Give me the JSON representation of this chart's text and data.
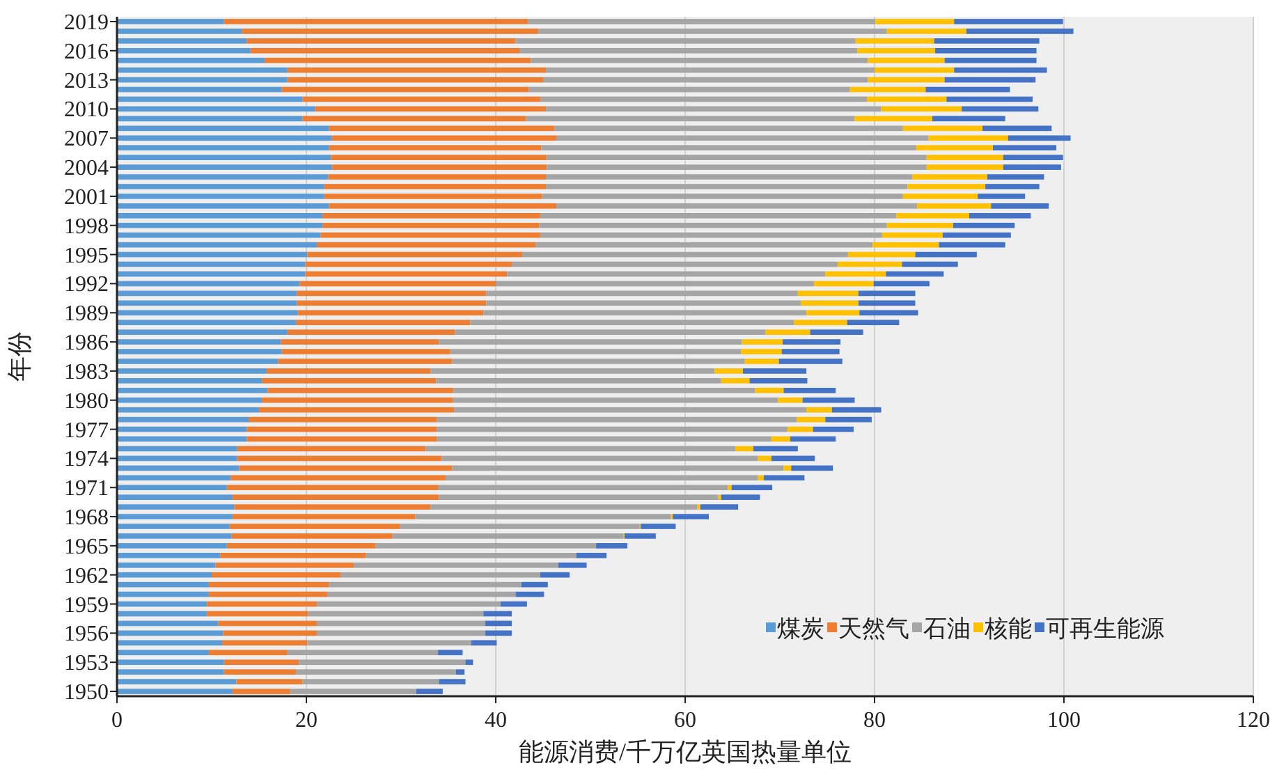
{
  "chart_data": {
    "type": "bar",
    "orientation": "horizontal",
    "stacked": true,
    "xlabel": "能源消费/千万亿英国热量单位",
    "ylabel": "年份",
    "categories": [
      "2019",
      null,
      null,
      "2016",
      null,
      null,
      "2013",
      null,
      null,
      "2010",
      null,
      null,
      "2007",
      null,
      null,
      "2004",
      null,
      null,
      "2001",
      null,
      null,
      "1998",
      null,
      null,
      "1995",
      null,
      null,
      "1992",
      null,
      null,
      "1989",
      null,
      null,
      "1986",
      null,
      null,
      "1983",
      null,
      null,
      "1980",
      null,
      null,
      "1977",
      null,
      null,
      "1974",
      null,
      null,
      "1971",
      null,
      null,
      "1968",
      null,
      null,
      "1965",
      null,
      null,
      "1962",
      null,
      null,
      "1959",
      null,
      null,
      "1956",
      null,
      null,
      "1953",
      null,
      null,
      "1950"
    ],
    "series": [
      {
        "name": "煤炭",
        "color": "#5b9bd5",
        "values": [
          11.3,
          13.2,
          13.7,
          14.1,
          15.6,
          18.0,
          18.0,
          17.4,
          19.6,
          20.9,
          19.6,
          22.4,
          22.7,
          22.4,
          22.6,
          22.7,
          22.3,
          21.9,
          21.9,
          22.4,
          21.7,
          21.7,
          21.5,
          21.1,
          20.1,
          19.9,
          19.9,
          19.3,
          19.0,
          19.0,
          19.1,
          18.9,
          18.0,
          17.3,
          17.4,
          17.0,
          15.8,
          15.3,
          15.9,
          15.3,
          15.0,
          13.9,
          13.7,
          13.7,
          12.7,
          12.7,
          12.9,
          12.0,
          11.6,
          12.2,
          12.4,
          12.2,
          11.9,
          12.1,
          11.6,
          10.9,
          10.4,
          10.0,
          9.7,
          9.7,
          9.5,
          9.5,
          10.7,
          11.2,
          11.1,
          9.7,
          11.3,
          11.3,
          12.6,
          12.2
        ]
      },
      {
        "name": "天然气",
        "color": "#ed7d31",
        "values": [
          32.1,
          31.3,
          28.4,
          28.4,
          28.1,
          27.3,
          27.0,
          26.1,
          25.1,
          24.4,
          23.6,
          23.8,
          23.7,
          22.4,
          22.8,
          22.7,
          23.0,
          23.4,
          23.0,
          24.0,
          23.0,
          22.9,
          23.2,
          23.1,
          22.7,
          21.8,
          21.3,
          20.7,
          20.0,
          20.0,
          19.6,
          18.4,
          17.7,
          16.7,
          17.8,
          18.4,
          17.3,
          18.4,
          19.6,
          20.2,
          20.6,
          19.9,
          20.1,
          20.1,
          19.9,
          21.6,
          22.5,
          22.7,
          22.3,
          21.8,
          20.7,
          19.3,
          18.0,
          17.0,
          15.7,
          15.4,
          14.6,
          13.6,
          12.7,
          12.5,
          11.6,
          10.7,
          10.4,
          9.9,
          9.0,
          8.3,
          7.9,
          7.6,
          7.0,
          6.1
        ]
      },
      {
        "name": "石油",
        "color": "#a5a5a5",
        "values": [
          36.7,
          36.8,
          35.9,
          35.7,
          35.6,
          34.7,
          34.3,
          33.9,
          34.5,
          35.4,
          34.7,
          36.8,
          39.3,
          39.6,
          40.1,
          40.1,
          38.7,
          38.2,
          38.1,
          38.1,
          37.6,
          36.7,
          36.1,
          35.6,
          34.4,
          34.4,
          33.6,
          33.6,
          32.9,
          33.2,
          34.1,
          34.2,
          32.8,
          32.0,
          30.7,
          30.9,
          30.0,
          30.1,
          31.9,
          34.3,
          37.2,
          38.0,
          37.0,
          35.3,
          32.7,
          33.4,
          35.0,
          33.0,
          30.6,
          29.5,
          28.2,
          27.0,
          25.3,
          24.4,
          23.3,
          22.2,
          21.6,
          21.1,
          20.3,
          19.9,
          19.4,
          18.5,
          17.8,
          17.8,
          17.3,
          15.9,
          17.6,
          16.9,
          14.4,
          13.3
        ]
      },
      {
        "name": "核能",
        "color": "#ffc000",
        "values": [
          8.3,
          8.4,
          8.3,
          8.2,
          8.1,
          8.4,
          8.1,
          8.0,
          8.4,
          8.5,
          8.2,
          8.4,
          8.4,
          8.1,
          8.1,
          8.1,
          7.9,
          8.2,
          7.9,
          7.8,
          7.7,
          7.0,
          6.4,
          7.0,
          7.1,
          6.8,
          6.4,
          6.3,
          6.4,
          6.1,
          5.6,
          5.6,
          4.7,
          4.3,
          4.3,
          3.6,
          3.0,
          3.0,
          3.0,
          2.6,
          2.7,
          3.0,
          2.7,
          2.0,
          1.9,
          1.4,
          0.8,
          0.6,
          0.4,
          0.3,
          0.3,
          0.2,
          0.1,
          0.1,
          0,
          0,
          0,
          0,
          0,
          0,
          0,
          0,
          0,
          0,
          0,
          0,
          0,
          0,
          0,
          0
        ]
      },
      {
        "name": "可再生能源",
        "color": "#4472c4",
        "values": [
          11.5,
          11.3,
          11.1,
          10.7,
          9.7,
          9.8,
          9.6,
          8.9,
          9.1,
          8.1,
          7.7,
          7.3,
          6.6,
          6.7,
          6.3,
          6.1,
          6.0,
          5.7,
          5.0,
          6.1,
          6.5,
          6.5,
          7.2,
          7.0,
          6.5,
          5.9,
          6.1,
          5.9,
          6.0,
          6.0,
          6.2,
          5.5,
          5.6,
          6.1,
          6.1,
          6.7,
          6.7,
          6.1,
          5.5,
          5.5,
          5.2,
          4.9,
          4.3,
          4.8,
          4.7,
          4.6,
          4.4,
          4.3,
          4.3,
          4.1,
          4.0,
          3.8,
          3.7,
          3.3,
          3.3,
          3.2,
          3.0,
          3.1,
          2.8,
          3.0,
          2.8,
          3.0,
          2.8,
          2.8,
          2.7,
          2.6,
          0.8,
          0.9,
          2.8,
          2.8
        ]
      }
    ],
    "xlim": [
      0,
      120
    ],
    "xticks": [
      0,
      20,
      40,
      60,
      80,
      100,
      120
    ],
    "grid": "x",
    "legend": "bottom right"
  }
}
